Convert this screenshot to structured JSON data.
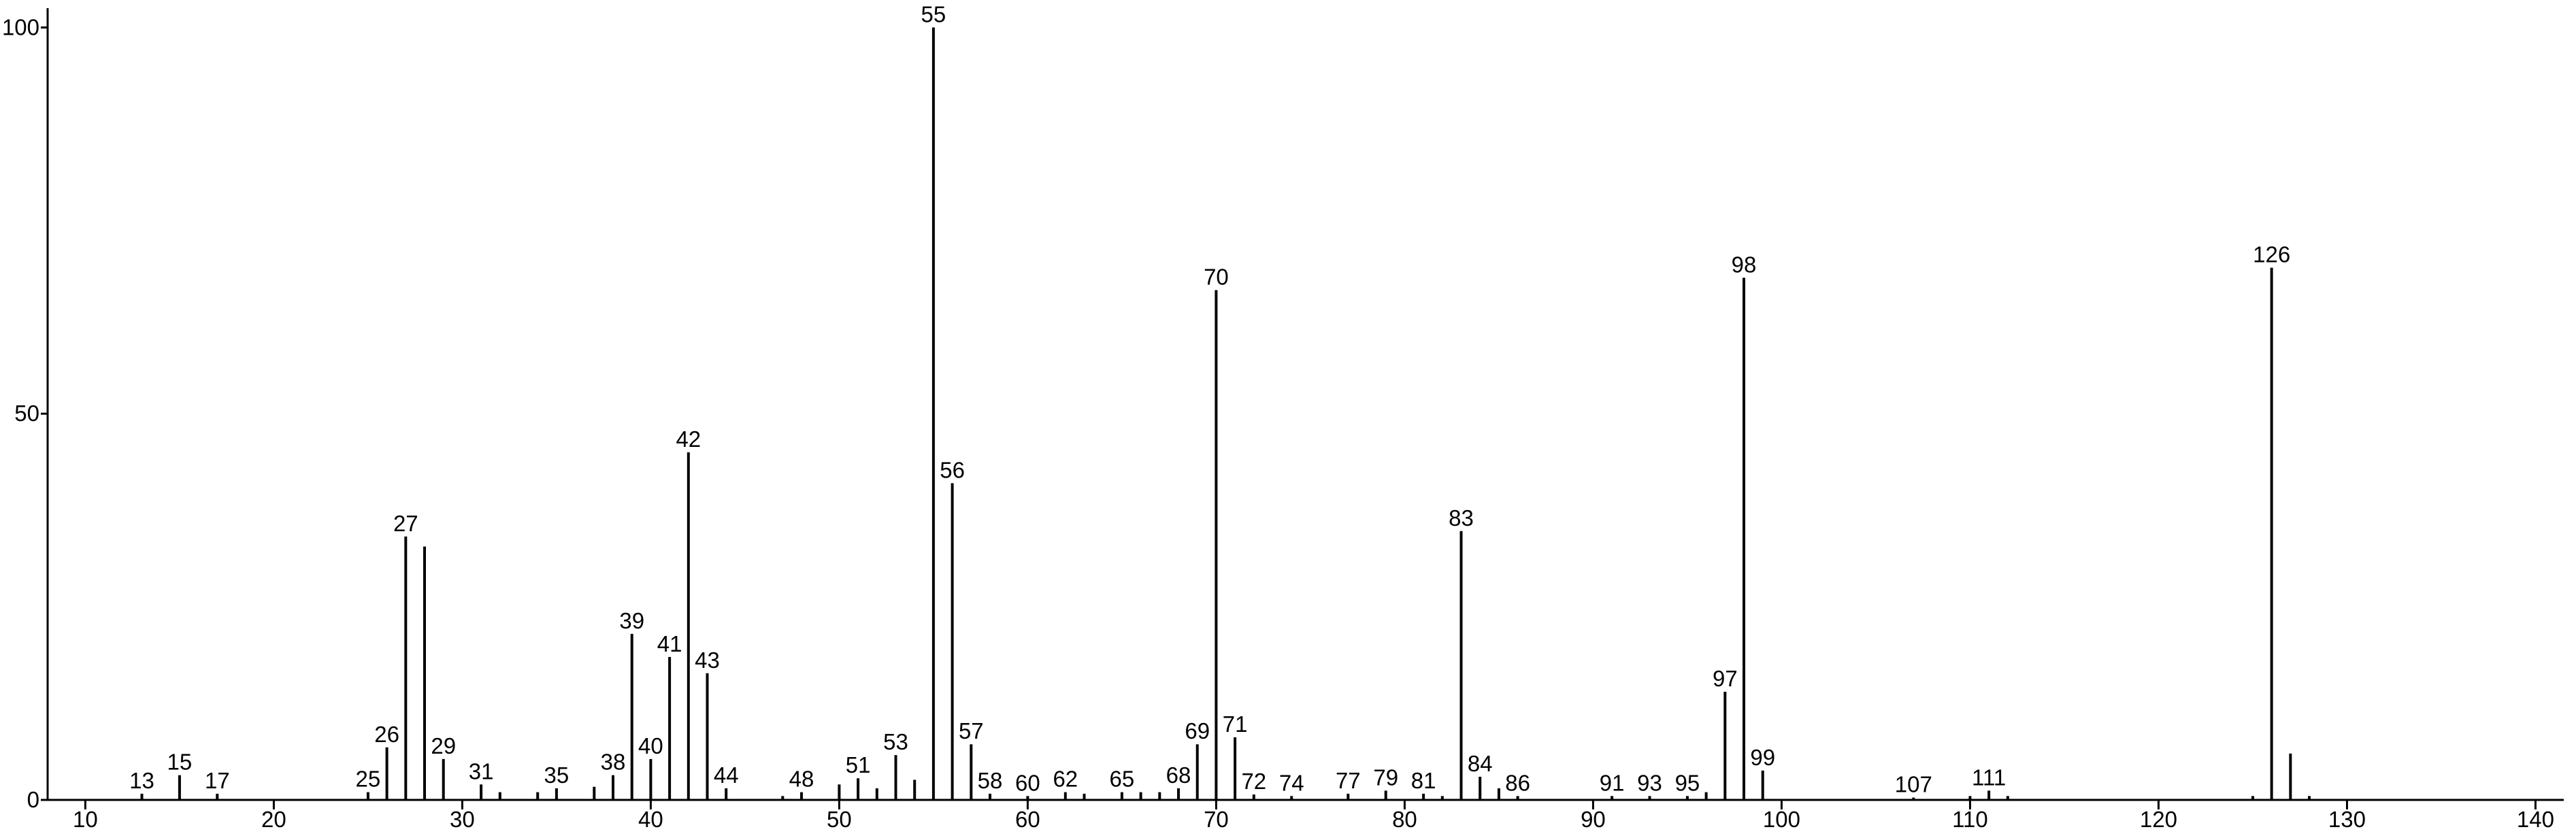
{
  "chart_data": {
    "type": "stem",
    "x": [
      13,
      15,
      17,
      25,
      26,
      27,
      28,
      29,
      31,
      32,
      34,
      35,
      37,
      38,
      39,
      40,
      41,
      42,
      43,
      44,
      47,
      48,
      50,
      51,
      52,
      53,
      54,
      55,
      56,
      57,
      58,
      60,
      62,
      63,
      65,
      66,
      67,
      68,
      69,
      70,
      71,
      72,
      74,
      77,
      79,
      81,
      82,
      83,
      84,
      85,
      86,
      91,
      93,
      95,
      96,
      97,
      98,
      99,
      107,
      110,
      111,
      112,
      125,
      126,
      127,
      128
    ],
    "values": [
      0.8,
      3.2,
      0.8,
      1,
      6.8,
      34.1,
      32.8,
      5.3,
      2,
      1,
      1,
      1.5,
      1.7,
      3.2,
      21.5,
      5.3,
      18.5,
      45,
      16.4,
      1.5,
      0.5,
      1,
      2,
      2.8,
      1.5,
      5.8,
      2.6,
      100,
      41,
      7.2,
      0.8,
      0.5,
      1,
      0.8,
      1,
      1,
      1,
      1.5,
      7.2,
      66,
      8.1,
      0.7,
      0.5,
      0.8,
      1.2,
      0.8,
      0.5,
      34.8,
      3,
      1.5,
      0.5,
      0.5,
      0.5,
      0.5,
      1,
      14,
      67.6,
      3.8,
      0.3,
      0.5,
      1.2,
      0.5,
      0.5,
      68.9,
      6,
      0.5
    ],
    "peak_labels": [
      13,
      15,
      17,
      25,
      26,
      27,
      null,
      29,
      31,
      null,
      null,
      35,
      null,
      38,
      39,
      40,
      41,
      42,
      43,
      44,
      null,
      48,
      null,
      51,
      null,
      53,
      null,
      55,
      56,
      57,
      58,
      60,
      62,
      null,
      65,
      null,
      null,
      68,
      69,
      70,
      71,
      72,
      74,
      77,
      79,
      81,
      null,
      83,
      84,
      null,
      86,
      91,
      93,
      95,
      null,
      97,
      98,
      99,
      107,
      null,
      111,
      null,
      null,
      126,
      null,
      null
    ],
    "color": "#000000",
    "xlim": [
      8,
      141.5
    ],
    "xticks": [
      10,
      20,
      30,
      40,
      50,
      60,
      70,
      80,
      90,
      100,
      110,
      120,
      130,
      140
    ],
    "ylim": [
      0,
      102.5
    ],
    "yticks": [
      0,
      50,
      100
    ]
  }
}
